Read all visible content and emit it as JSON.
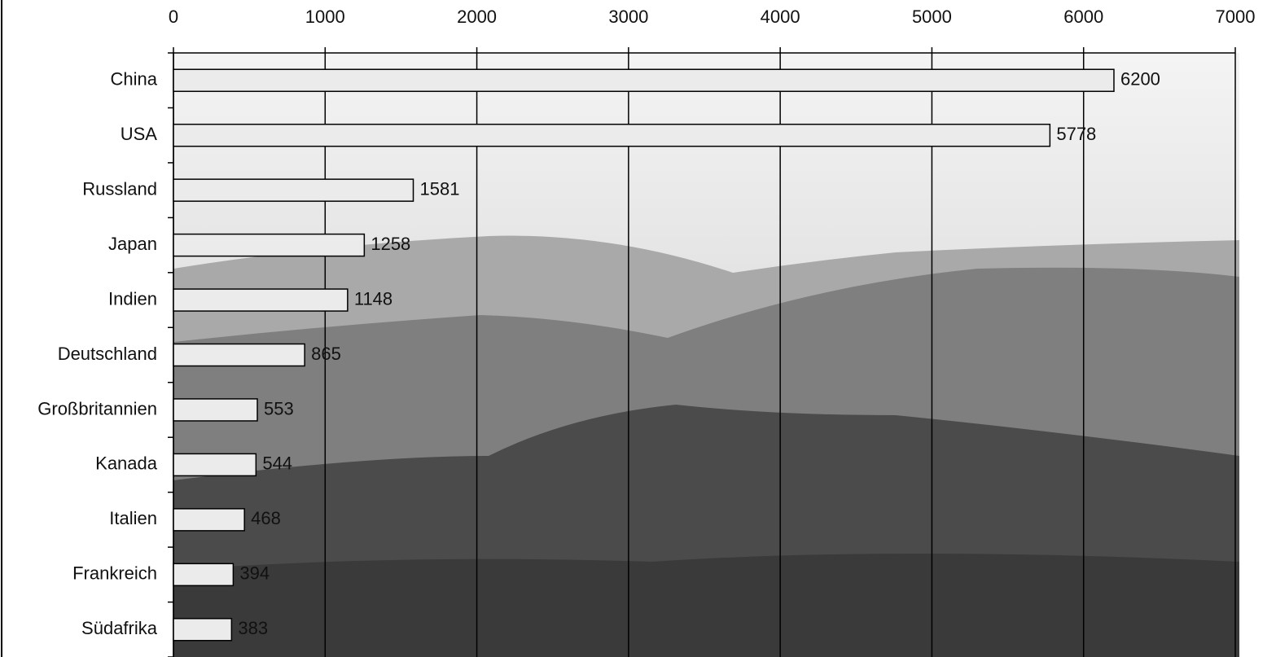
{
  "chart_data": {
    "type": "bar",
    "categories": [
      "China",
      "USA",
      "Russland",
      "Japan",
      "Indien",
      "Deutschland",
      "Großbritannien",
      "Kanada",
      "Italien",
      "Frankreich",
      "Südafrika"
    ],
    "values": [
      6200,
      5778,
      1581,
      1258,
      1148,
      865,
      553,
      544,
      468,
      394,
      383
    ],
    "color": "#ebebeb",
    "xlim": [
      0,
      7000
    ],
    "xticks": [
      0,
      1000,
      2000,
      3000,
      4000,
      5000,
      6000,
      7000
    ],
    "grid": true
  }
}
